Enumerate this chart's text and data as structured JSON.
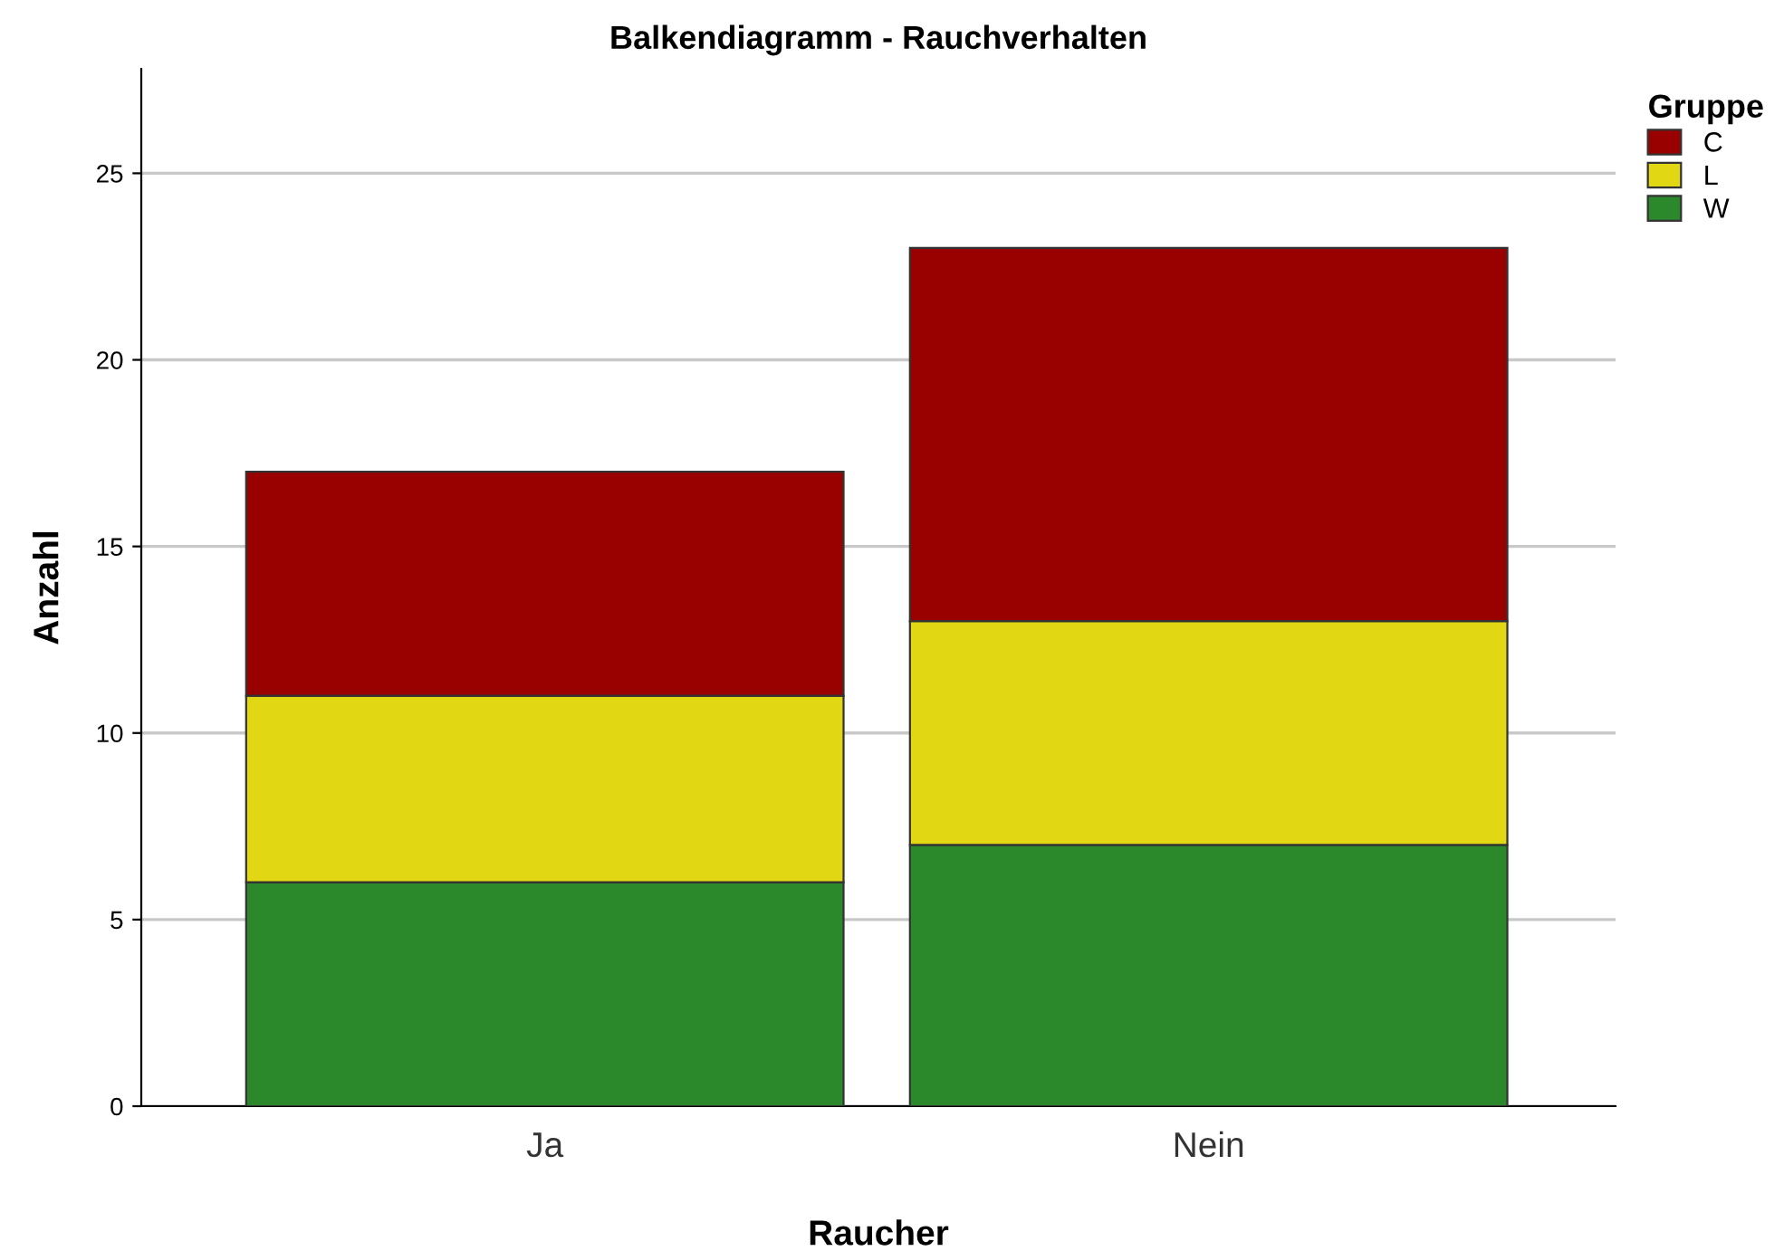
{
  "chart_data": {
    "type": "bar",
    "title": "Balkendiagramm - Rauchverhalten",
    "xlabel": "Raucher",
    "ylabel": "Anzahl",
    "legend_title": "Gruppe",
    "categories": [
      "Ja",
      "Nein"
    ],
    "series": [
      {
        "name": "W",
        "color": "#2b892b",
        "values": [
          6,
          7
        ]
      },
      {
        "name": "L",
        "color": "#e1d712",
        "values": [
          5,
          6
        ]
      },
      {
        "name": "C",
        "color": "#990000",
        "values": [
          6,
          10
        ]
      }
    ],
    "stacked": true,
    "ylim": [
      0,
      27.8
    ],
    "yticks": [
      0,
      5,
      10,
      15,
      20,
      25
    ],
    "grid": "y",
    "legend": "top right"
  }
}
